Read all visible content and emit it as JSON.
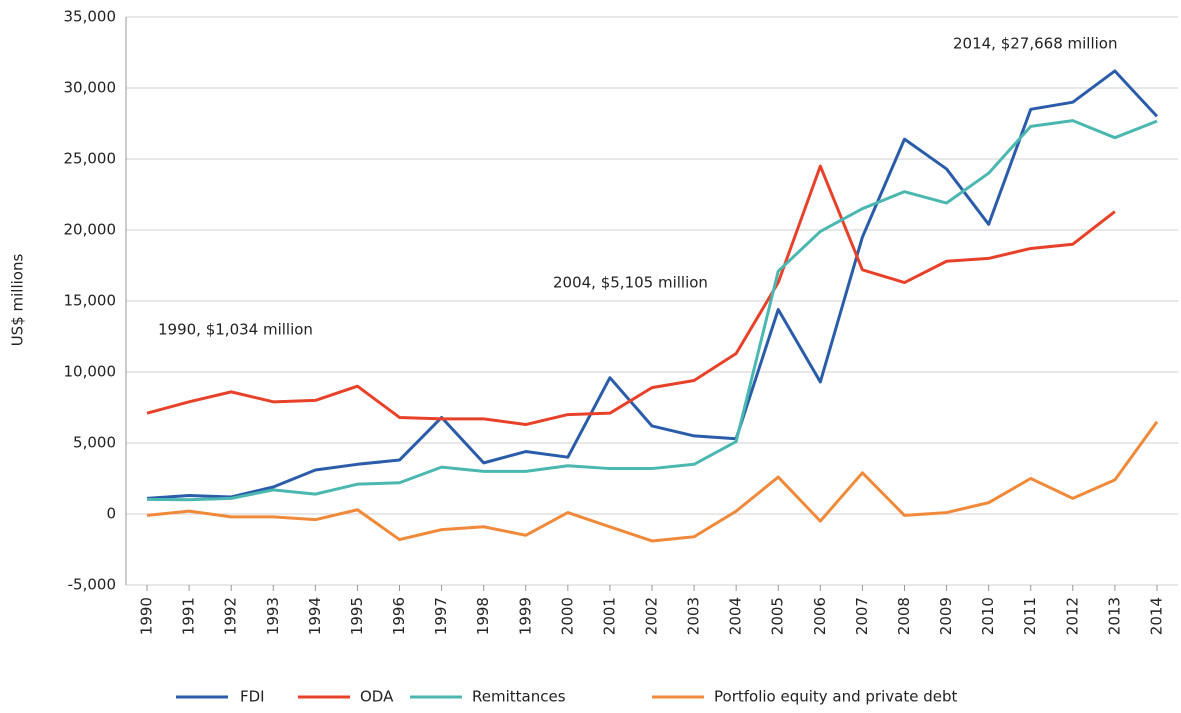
{
  "chart_data": {
    "type": "line",
    "y_label": "US$ millions",
    "categories": [
      "1990",
      "1991",
      "1992",
      "1993",
      "1994",
      "1995",
      "1996",
      "1997",
      "1998",
      "1999",
      "2000",
      "2001",
      "2002",
      "2003",
      "2004",
      "2005",
      "2006",
      "2007",
      "2008",
      "2009",
      "2010",
      "2011",
      "2012",
      "2013",
      "2014"
    ],
    "series": [
      {
        "name": "FDI",
        "color": "#2a5caa",
        "values": [
          1100,
          1300,
          1200,
          1900,
          3100,
          3500,
          3800,
          6800,
          3600,
          4400,
          4000,
          9600,
          6200,
          5500,
          5300,
          14400,
          9300,
          19500,
          26400,
          24300,
          20400,
          28500,
          29000,
          31200,
          28000
        ]
      },
      {
        "name": "ODA",
        "color": "#e8412a",
        "values": [
          7100,
          7900,
          8600,
          7900,
          8000,
          9000,
          6800,
          6700,
          6700,
          6300,
          7000,
          7100,
          8900,
          9400,
          11300,
          16300,
          24500,
          17200,
          16300,
          17800,
          18000,
          18700,
          19000,
          21300,
          null
        ]
      },
      {
        "name": "Remittances",
        "color": "#4ab8b0",
        "values": [
          1034,
          1000,
          1100,
          1700,
          1400,
          2100,
          2200,
          3300,
          3000,
          3000,
          3400,
          3200,
          3200,
          3500,
          5105,
          17100,
          19900,
          21500,
          22700,
          21900,
          24000,
          27300,
          27700,
          26500,
          27668
        ]
      },
      {
        "name": "Portfolio equity and private debt",
        "color": "#f08a3a",
        "values": [
          -100,
          200,
          -200,
          -200,
          -400,
          300,
          -1800,
          -1100,
          -900,
          -1500,
          100,
          -900,
          -1900,
          -1600,
          200,
          2600,
          -500,
          2900,
          -100,
          100,
          800,
          2500,
          1100,
          2400,
          6500
        ]
      }
    ],
    "annotations": [
      "1990, $1,034 million",
      "2004, $5,105 million",
      "2014, $27,668 million"
    ],
    "ylim": [
      -5000,
      35000
    ],
    "yticks": [
      {
        "value": -5000,
        "label": "-5,000"
      },
      0,
      {
        "value": 5000,
        "label": "5,000"
      },
      {
        "value": 10000,
        "label": "10,000"
      },
      {
        "value": 15000,
        "label": "15,000"
      },
      {
        "value": 20000,
        "label": "20,000"
      },
      {
        "value": 25000,
        "label": "25,000"
      },
      {
        "value": 30000,
        "label": "30,000"
      },
      {
        "value": 35000,
        "label": "35,000"
      }
    ],
    "grid": true
  }
}
